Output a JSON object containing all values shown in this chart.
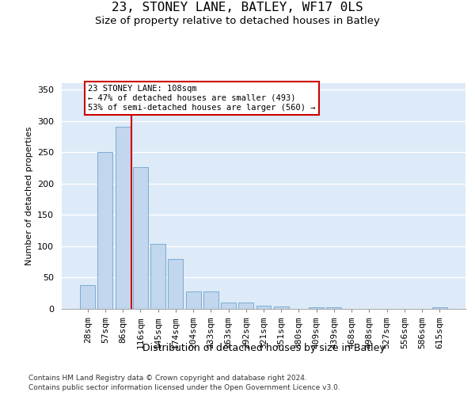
{
  "title1": "23, STONEY LANE, BATLEY, WF17 0LS",
  "title2": "Size of property relative to detached houses in Batley",
  "xlabel": "Distribution of detached houses by size in Batley",
  "ylabel": "Number of detached properties",
  "categories": [
    "28sqm",
    "57sqm",
    "86sqm",
    "116sqm",
    "145sqm",
    "174sqm",
    "204sqm",
    "233sqm",
    "263sqm",
    "292sqm",
    "321sqm",
    "351sqm",
    "380sqm",
    "409sqm",
    "439sqm",
    "468sqm",
    "498sqm",
    "527sqm",
    "556sqm",
    "586sqm",
    "615sqm"
  ],
  "values": [
    38,
    250,
    291,
    226,
    103,
    79,
    28,
    28,
    10,
    10,
    5,
    4,
    0,
    3,
    3,
    0,
    0,
    0,
    0,
    0,
    3
  ],
  "bar_color": "#c2d6ed",
  "bar_edge_color": "#7aadd4",
  "bg_color": "#ddeaf7",
  "vline_index": 2.5,
  "vline_color": "#cc0000",
  "annotation_line1": "23 STONEY LANE: 108sqm",
  "annotation_line2": "← 47% of detached houses are smaller (493)",
  "annotation_line3": "53% of semi-detached houses are larger (560) →",
  "ylim_max": 360,
  "yticks": [
    0,
    50,
    100,
    150,
    200,
    250,
    300,
    350
  ],
  "footer1": "Contains HM Land Registry data © Crown copyright and database right 2024.",
  "footer2": "Contains public sector information licensed under the Open Government Licence v3.0.",
  "title1_fontsize": 11.5,
  "title2_fontsize": 9.5,
  "xlabel_fontsize": 9,
  "ylabel_fontsize": 8,
  "tick_fontsize": 8,
  "annot_fontsize": 7.5,
  "footer_fontsize": 6.5
}
